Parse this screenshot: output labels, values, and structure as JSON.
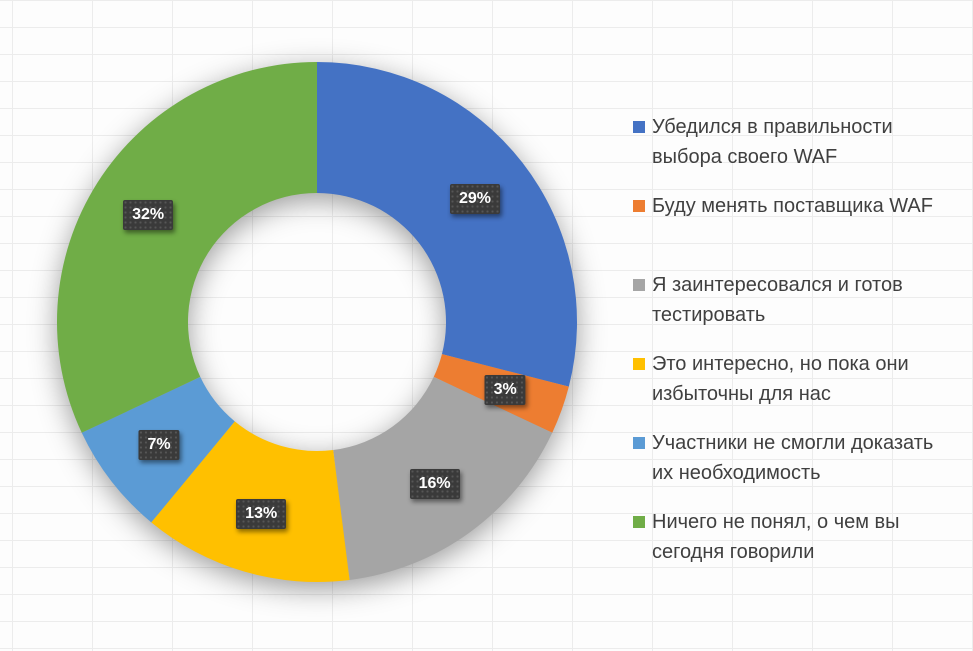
{
  "chart_data": {
    "type": "pie",
    "subtype": "donut",
    "title": "",
    "legend_position": "right",
    "direction": "clockwise",
    "start_angle_deg": 0,
    "hole_ratio": 0.496,
    "categories": [
      "Убедился в правильности выбора своего WAF",
      "Буду менять поставщика WAF",
      "Я заинтересовался и готов тестировать",
      "Это интересно, но пока они избыточны для нас",
      "Участники не смогли доказать их необходимость",
      "Ничего не понял, о чем вы сегодня говорили"
    ],
    "values": [
      29,
      3,
      16,
      13,
      7,
      32
    ],
    "data_labels": [
      "29%",
      "3%",
      "16%",
      "13%",
      "7%",
      "32%"
    ],
    "colors": [
      "#4472C4",
      "#ED7D31",
      "#A5A5A5",
      "#FFC000",
      "#5B9BD5",
      "#70AD47"
    ],
    "data_label_style": {
      "background": "#3a3a3a",
      "text_color": "#ffffff"
    },
    "legend_text_color": "#404040",
    "background_grid_line_color": "#ececec"
  }
}
